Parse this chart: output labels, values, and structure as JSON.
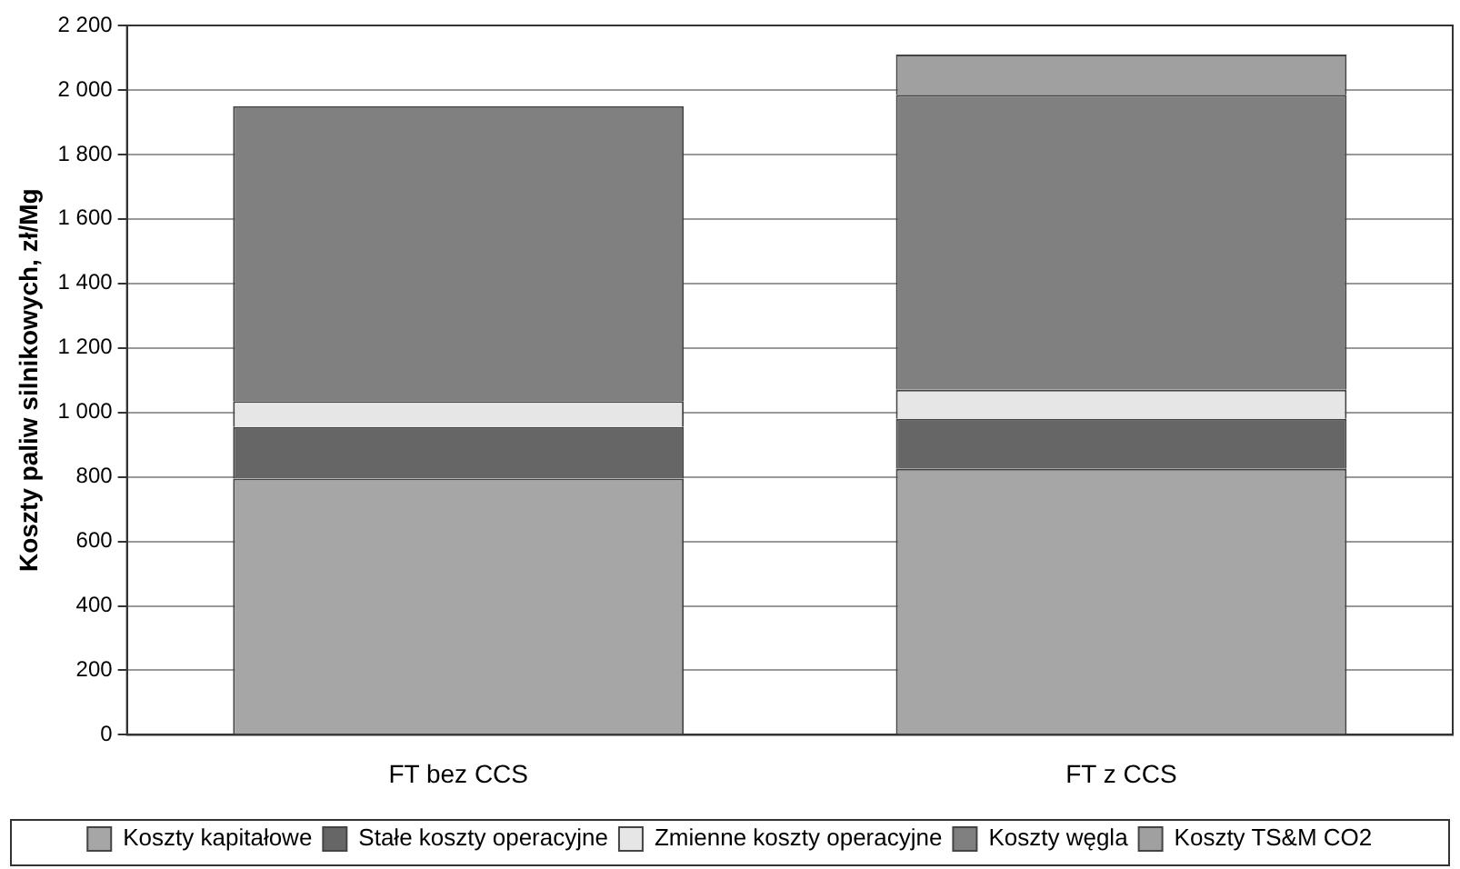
{
  "chart_data": {
    "type": "bar",
    "stacked": true,
    "ylabel": "Koszty paliw silnikowych, zł/Mg",
    "categories": [
      "FT bez CCS",
      "FT z CCS"
    ],
    "series": [
      {
        "name": "Koszty kapitałowe",
        "color": "#a6a6a6",
        "values": [
          795,
          825
        ]
      },
      {
        "name": "Stałe koszty operacyjne",
        "color": "#666666",
        "values": [
          160,
          155
        ]
      },
      {
        "name": "Zmienne koszty operacyjne",
        "color": "#e6e6e6",
        "values": [
          80,
          90
        ]
      },
      {
        "name": "Koszty węgla",
        "color": "#808080",
        "values": [
          915,
          915
        ]
      },
      {
        "name": "Koszty TS&M CO2",
        "color": "#a0a0a0",
        "values": [
          0,
          125
        ]
      }
    ],
    "ylim": [
      0,
      2200
    ],
    "yticks": [
      0,
      {
        "value": 200,
        "label": "200"
      },
      400,
      600,
      800,
      {
        "value": 1000,
        "label": "1 000"
      },
      {
        "value": 1200,
        "label": "1 200"
      },
      {
        "value": 1400,
        "label": "1 400"
      },
      {
        "value": 1600,
        "label": "1 600"
      },
      {
        "value": 1800,
        "label": "1 800"
      },
      {
        "value": 2000,
        "label": "2 000"
      },
      {
        "value": 2200,
        "label": "2 200"
      }
    ],
    "grid": "y",
    "legend": "bottom"
  }
}
